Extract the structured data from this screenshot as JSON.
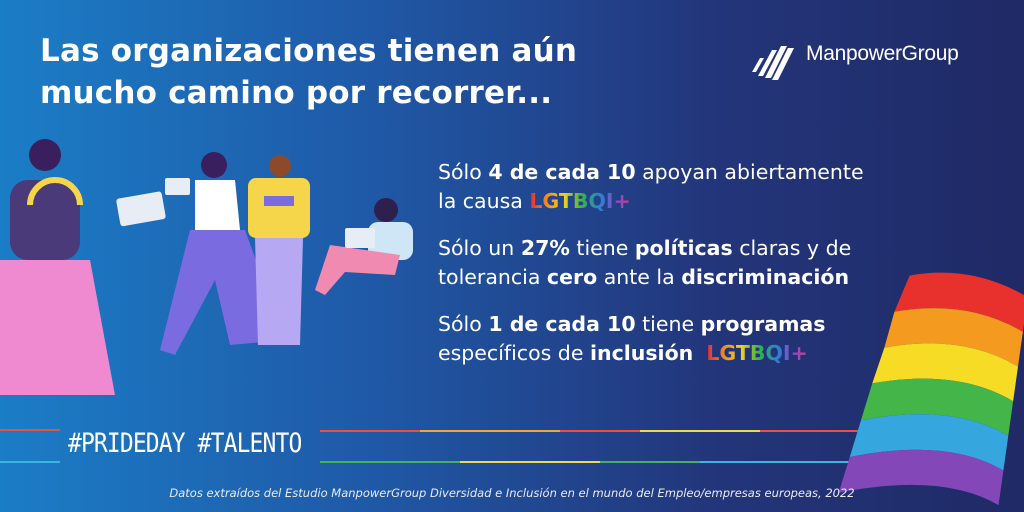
{
  "title": [
    "Las organizaciones tienen aún",
    "mucho camino por recorrer..."
  ],
  "logo": "ManpowerGroup",
  "statements": [
    [
      {
        "text": "Sólo ",
        "style": "normal"
      },
      {
        "text": "4 de cada 10",
        "style": "bold"
      },
      {
        "text": " apoyan abiertamente la causa ",
        "style": "normal"
      },
      {
        "text": "LGTBQI+",
        "style": "rainbow"
      }
    ],
    [
      {
        "text": "Sólo un ",
        "style": "normal"
      },
      {
        "text": "27%",
        "style": "bold"
      },
      {
        "text": " tiene ",
        "style": "normal"
      },
      {
        "text": "políticas",
        "style": "bold"
      },
      {
        "text": " claras y de tolerancia ",
        "style": "normal"
      },
      {
        "text": "cero",
        "style": "bold"
      },
      {
        "text": " ante la ",
        "style": "normal"
      },
      {
        "text": "discriminación",
        "style": "bold"
      }
    ],
    [
      {
        "text": "Sólo ",
        "style": "normal"
      },
      {
        "text": "1 de cada 10",
        "style": "bold"
      },
      {
        "text": " tiene ",
        "style": "normal"
      },
      {
        "text": "programas",
        "style": "bold"
      },
      {
        "text": " específicos de ",
        "style": "normal"
      },
      {
        "text": "inclusión",
        "style": "bold"
      },
      {
        "text": "  ",
        "style": "normal"
      },
      {
        "text": "LGTBQI+",
        "style": "rainbow"
      }
    ]
  ],
  "hashtags": "#PRIDEDAY #TALENTO",
  "footnote": "Datos extraídos del Estudio ManpowerGroup Diversidad e Inclusión en el mundo del Empleo/empresas europeas, 2022"
}
